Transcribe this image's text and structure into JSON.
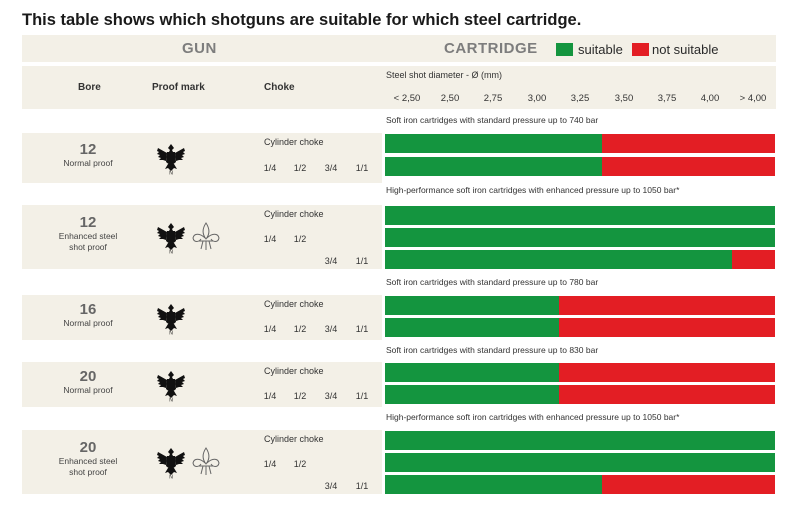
{
  "title": "This table shows which shotguns are suitable for which steel cartridge.",
  "headers": {
    "gun": "GUN",
    "cartridge": "CARTRIDGE"
  },
  "legend": {
    "suitable": {
      "label": "suitable",
      "color": "#14953f"
    },
    "not_suitable": {
      "label": "not suitable",
      "color": "#e31e24"
    }
  },
  "columns": {
    "bore": "Bore",
    "proof_mark": "Proof mark",
    "choke": "Choke"
  },
  "chart_data": {
    "type": "bar",
    "xlabel": "Steel shot diameter - Ø  (mm)",
    "x_ticks": [
      "< 2,50",
      "2,50",
      "2,75",
      "3,00",
      "3,25",
      "3,50",
      "3,75",
      "4,00",
      "> 4,00"
    ],
    "xlim": [
      "< 2,50",
      "> 4,00"
    ],
    "grid": false,
    "legend_position": "top-right",
    "series": [
      {
        "name": "suitable",
        "color": "#14953f"
      },
      {
        "name": "not suitable",
        "color": "#e31e24"
      }
    ],
    "groups": [
      {
        "cartridge": "Soft iron cartridges with standard pressure up to 740 bar",
        "bore": "12",
        "proof": "Normal proof",
        "proof_marks": [
          "eagle-icon"
        ],
        "rows": [
          {
            "choke": "Cylinder choke",
            "suitable_up_to": "3,25"
          },
          {
            "choke": [
              "1/4",
              "1/2",
              "3/4",
              "1/1"
            ],
            "suitable_up_to": "3,25"
          }
        ]
      },
      {
        "cartridge": "High-performance soft iron cartridges with enhanced pressure up to 1050 bar*",
        "bore": "12",
        "proof": "Enhanced steel shot proof",
        "proof_marks": [
          "eagle-icon",
          "fleur-de-lis-icon"
        ],
        "rows": [
          {
            "choke": "Cylinder choke",
            "suitable_up_to": "> 4,00"
          },
          {
            "choke": [
              "1/4",
              "1/2"
            ],
            "suitable_up_to": "> 4,00"
          },
          {
            "choke": [
              "3/4",
              "1/1"
            ],
            "suitable_up_to": "4,00"
          }
        ]
      },
      {
        "cartridge": "Soft iron cartridges with standard pressure up to 780 bar",
        "bore": "16",
        "proof": "Normal proof",
        "proof_marks": [
          "eagle-icon"
        ],
        "rows": [
          {
            "choke": "Cylinder choke",
            "suitable_up_to": "3,00"
          },
          {
            "choke": [
              "1/4",
              "1/2",
              "3/4",
              "1/1"
            ],
            "suitable_up_to": "3,00"
          }
        ]
      },
      {
        "cartridge": "Soft iron cartridges with standard pressure up to 830 bar",
        "bore": "20",
        "proof": "Normal proof",
        "proof_marks": [
          "eagle-icon"
        ],
        "rows": [
          {
            "choke": "Cylinder choke",
            "suitable_up_to": "3,00"
          },
          {
            "choke": [
              "1/4",
              "1/2",
              "3/4",
              "1/1"
            ],
            "suitable_up_to": "3,00"
          }
        ]
      },
      {
        "cartridge": "High-performance soft iron cartridges with enhanced pressure up to 1050 bar*",
        "bore": "20",
        "proof": "Enhanced steel shot proof",
        "proof_marks": [
          "eagle-icon",
          "fleur-de-lis-icon"
        ],
        "rows": [
          {
            "choke": "Cylinder choke",
            "suitable_up_to": "> 4,00"
          },
          {
            "choke": [
              "1/4",
              "1/2"
            ],
            "suitable_up_to": "> 4,00"
          },
          {
            "choke": [
              "3/4",
              "1/1"
            ],
            "suitable_up_to": "3,25"
          }
        ]
      }
    ]
  }
}
